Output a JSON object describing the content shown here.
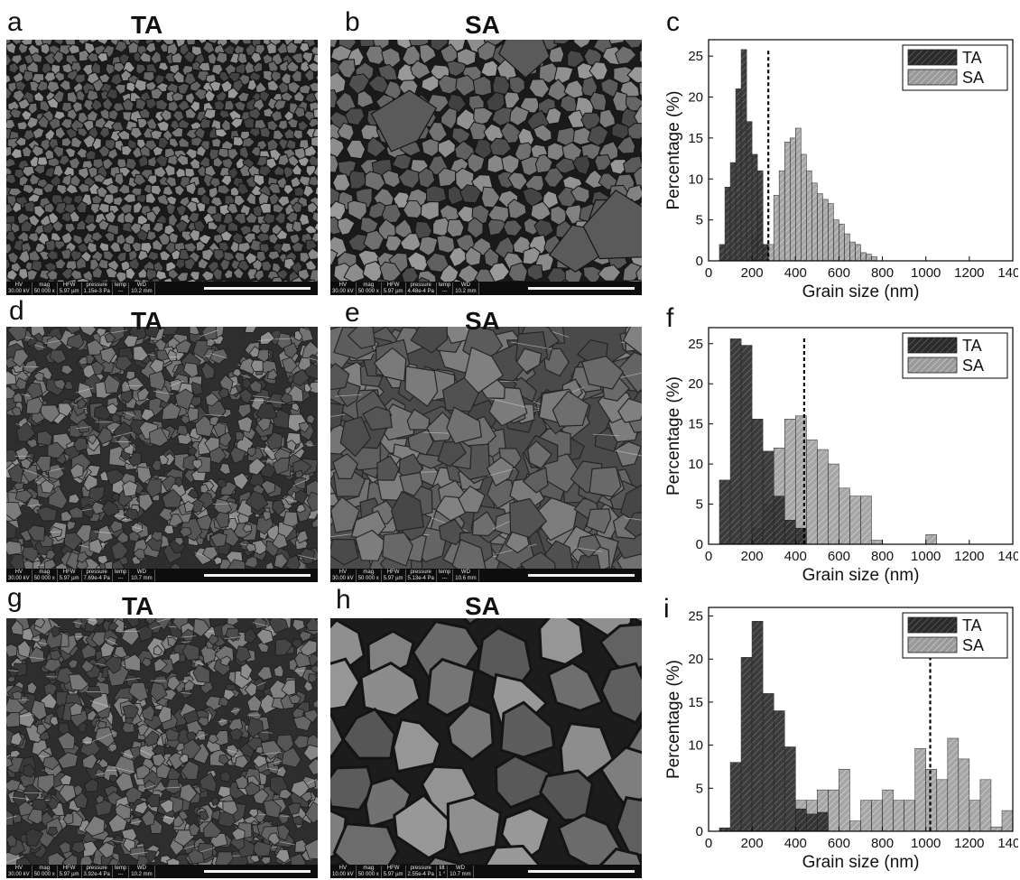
{
  "panels": [
    {
      "letter": "a",
      "title": "TA",
      "info": {
        "HV": "30.00 kV",
        "mag": "50 000 x",
        "HFW": "5.97 µm",
        "pressure": "1.15e-3 Pa",
        "temp": "---",
        "WD": "10.2 mm"
      }
    },
    {
      "letter": "b",
      "title": "SA",
      "info": {
        "HV": "30.00 kV",
        "mag": "50 000 x",
        "HFW": "5.97 µm",
        "pressure": "4.48e-4 Pa",
        "temp": "---",
        "WD": "10.2 mm"
      }
    },
    {
      "letter": "c",
      "title": ""
    },
    {
      "letter": "d",
      "title": "TA",
      "info": {
        "HV": "30.00 kV",
        "mag": "50 000 x",
        "HFW": "5.97 µm",
        "pressure": "7.69e-4 Pa",
        "temp": "---",
        "WD": "10.7 mm"
      }
    },
    {
      "letter": "e",
      "title": "SA",
      "info": {
        "HV": "30.00 kV",
        "mag": "50 000 x",
        "HFW": "5.97 µm",
        "pressure": "5.13e-4 Pa",
        "temp": "---",
        "WD": "10.6 mm"
      }
    },
    {
      "letter": "f",
      "title": ""
    },
    {
      "letter": "g",
      "title": "TA",
      "info": {
        "HV": "30.00 kV",
        "mag": "50 000 x",
        "HFW": "5.97 µm",
        "pressure": "3.92e-4 Pa",
        "temp": "---",
        "WD": "10.2 mm"
      }
    },
    {
      "letter": "h",
      "title": "SA",
      "info": {
        "HV": "10.00 kV",
        "mag": "50 000 x",
        "HFW": "5.97 µm",
        "pressure": "2.55e-4 Pa",
        "tilt": "1 °",
        "WD": "10.7 mm"
      }
    },
    {
      "letter": "i",
      "title": ""
    }
  ],
  "info_headers": {
    "HV": "HV",
    "mag": "mag",
    "HFW": "HFW",
    "pressure": "pressure",
    "temp": "temp",
    "tilt": "tilt",
    "WD": "WD"
  },
  "colors": {
    "ta": "#2b2b2b",
    "sa": "#9a9a9a",
    "sem_bg": "#3a3a3a"
  },
  "chart_data": [
    {
      "type": "bar",
      "panel": "c",
      "xlabel": "Grain size (nm)",
      "ylabel": "Percentage (%)",
      "xlim": [
        0,
        1400
      ],
      "ylim": [
        0,
        27
      ],
      "xticks": [
        0,
        200,
        400,
        600,
        800,
        1000,
        1200,
        1400
      ],
      "yticks": [
        0,
        5,
        10,
        15,
        20,
        25
      ],
      "bin_width": 25,
      "dashed_line_x": 275,
      "legend_position": "top-right",
      "series": [
        {
          "name": "TA",
          "x": [
            75,
            100,
            125,
            150,
            175,
            200,
            225,
            250,
            275
          ],
          "values": [
            2,
            9,
            12,
            21,
            25.8,
            17,
            13,
            11,
            2
          ]
        },
        {
          "name": "SA",
          "x": [
            225,
            250,
            275,
            300,
            325,
            350,
            375,
            400,
            425,
            450,
            475,
            500,
            525,
            550,
            575,
            600,
            625,
            650,
            675,
            700,
            725,
            750,
            775
          ],
          "values": [
            3,
            6,
            2,
            2,
            8,
            11,
            14.5,
            15,
            16.2,
            13,
            11,
            9.5,
            8.2,
            7.5,
            7,
            5,
            4.5,
            3.3,
            2.3,
            2,
            1,
            0.8,
            0.5
          ]
        }
      ]
    },
    {
      "type": "bar",
      "panel": "f",
      "xlabel": "Grain size (nm)",
      "ylabel": "Percentage (%)",
      "xlim": [
        0,
        1400
      ],
      "ylim": [
        0,
        27
      ],
      "xticks": [
        0,
        200,
        400,
        600,
        800,
        1000,
        1200,
        1400
      ],
      "yticks": [
        0,
        5,
        10,
        15,
        20,
        25
      ],
      "bin_width": 50,
      "dashed_line_x": 440,
      "legend_position": "top-right",
      "series": [
        {
          "name": "TA",
          "x": [
            100,
            150,
            200,
            250,
            300,
            350,
            400,
            450
          ],
          "values": [
            8,
            25.6,
            24.8,
            15.6,
            11.6,
            6,
            3,
            2
          ]
        },
        {
          "name": "SA",
          "x": [
            250,
            300,
            350,
            400,
            450,
            500,
            550,
            600,
            650,
            700,
            750,
            800,
            1050
          ],
          "values": [
            2,
            5,
            12,
            15.6,
            16,
            13,
            11.8,
            10,
            7,
            6,
            6,
            0.5,
            1.2
          ]
        }
      ]
    },
    {
      "type": "bar",
      "panel": "i",
      "xlabel": "Grain size (nm)",
      "ylabel": "Percentage (%)",
      "xlim": [
        0,
        1400
      ],
      "ylim": [
        0,
        26
      ],
      "xticks": [
        0,
        200,
        400,
        600,
        800,
        1000,
        1200,
        1400
      ],
      "yticks": [
        0,
        5,
        10,
        15,
        20,
        25
      ],
      "bin_width": 50,
      "dashed_line_x": 1020,
      "legend_position": "top-right",
      "series": [
        {
          "name": "TA",
          "x": [
            100,
            150,
            200,
            250,
            300,
            350,
            400,
            450,
            500,
            550
          ],
          "values": [
            0.4,
            8,
            20.2,
            24.4,
            16,
            14,
            9.8,
            2.6,
            2,
            2.2
          ]
        },
        {
          "name": "SA",
          "x": [
            450,
            500,
            550,
            600,
            650,
            700,
            750,
            800,
            850,
            900,
            950,
            1000,
            1050,
            1100,
            1150,
            1200,
            1250,
            1300,
            1350,
            1400
          ],
          "values": [
            3.6,
            3.6,
            4.8,
            4.8,
            7.2,
            1.2,
            3.6,
            3.6,
            4.8,
            3.6,
            3.6,
            9.6,
            7.2,
            6,
            10.8,
            8.4,
            3.6,
            6,
            0.5,
            2.4
          ]
        }
      ]
    }
  ]
}
